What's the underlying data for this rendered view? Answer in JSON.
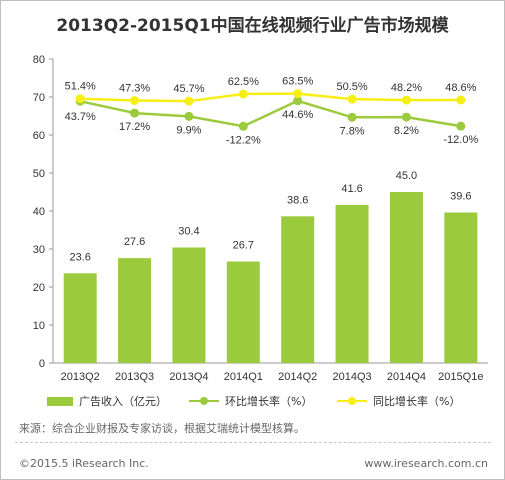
{
  "chart_data": {
    "type": "bar",
    "title": "2013Q2-2015Q1中国在线视频行业广告市场规模",
    "categories": [
      "2013Q2",
      "2013Q3",
      "2013Q4",
      "2014Q1",
      "2014Q2",
      "2014Q3",
      "2014Q4",
      "2015Q1e"
    ],
    "ylim": [
      0,
      80
    ],
    "yticks": [
      0,
      10,
      20,
      30,
      40,
      50,
      60,
      70,
      80
    ],
    "grid": false,
    "series": [
      {
        "name": "广告收入（亿元）",
        "kind": "bar",
        "color": "#9bcb3c",
        "values": [
          23.6,
          27.6,
          30.4,
          26.7,
          38.6,
          41.6,
          45.0,
          39.6
        ],
        "labels": [
          "23.6",
          "27.6",
          "30.4",
          "26.7",
          "38.6",
          "41.6",
          "45.0",
          "39.6"
        ]
      },
      {
        "name": "环比增长率（%）",
        "kind": "line",
        "color": "#9bcb3c",
        "values": [
          43.7,
          17.2,
          9.9,
          -12.2,
          44.6,
          7.8,
          8.2,
          -12.0
        ],
        "labels": [
          "43.7%",
          "17.2%",
          "9.9%",
          "-12.2%",
          "44.6%",
          "7.8%",
          "8.2%",
          "-12.0%"
        ]
      },
      {
        "name": "同比增长率（%）",
        "kind": "line",
        "color": "#f6ee14",
        "values": [
          51.4,
          47.3,
          45.7,
          62.5,
          63.5,
          50.5,
          48.2,
          48.6
        ],
        "labels": [
          "51.4%",
          "47.3%",
          "45.7%",
          "62.5%",
          "63.5%",
          "50.5%",
          "48.2%",
          "48.6%"
        ]
      }
    ],
    "legend_position": "bottom"
  },
  "source": "来源：综合企业财报及专家访谈，根据艾瑞统计模型核算。",
  "footer_left": "©2015.5 iResearch Inc.",
  "footer_right": "www.iresearch.com.cn"
}
